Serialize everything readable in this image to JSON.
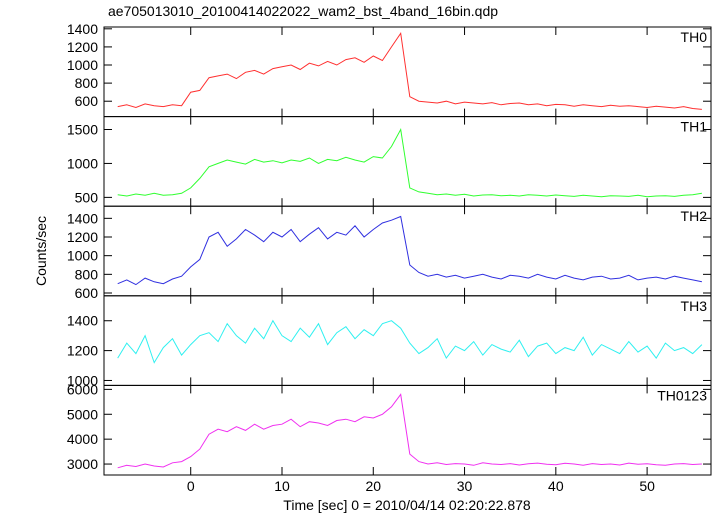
{
  "chart_data": {
    "type": "line",
    "title": "ae705013010_20100414022022_wam2_bst_4band_16bin.qdp",
    "x_label": "Time [sec] 0 = 2010/04/14 02:20:22.878",
    "y_label": "Counts/sec",
    "xlim": [
      -9.5,
      57
    ],
    "xticks": [
      0,
      10,
      20,
      30,
      40,
      50
    ],
    "x": [
      -8,
      -7,
      -6,
      -5,
      -4,
      -3,
      -2,
      -1,
      0,
      1,
      2,
      3,
      4,
      5,
      6,
      7,
      8,
      9,
      10,
      11,
      12,
      13,
      14,
      15,
      16,
      17,
      18,
      19,
      20,
      21,
      22,
      23,
      24,
      25,
      26,
      27,
      28,
      29,
      30,
      31,
      32,
      33,
      34,
      35,
      36,
      37,
      38,
      39,
      40,
      41,
      42,
      43,
      44,
      45,
      46,
      47,
      48,
      49,
      50,
      51,
      52,
      53,
      54,
      55,
      56
    ],
    "series": [
      {
        "name": "TH0",
        "color": "#ff3030",
        "ylim": [
          430,
          1420
        ],
        "yticks": [
          600,
          800,
          1000,
          1200,
          1400
        ],
        "values": [
          540,
          560,
          530,
          570,
          550,
          540,
          560,
          550,
          700,
          720,
          860,
          880,
          900,
          850,
          920,
          940,
          900,
          960,
          980,
          1000,
          950,
          1020,
          990,
          1040,
          1000,
          1060,
          1080,
          1030,
          1100,
          1050,
          1200,
          1350,
          650,
          600,
          590,
          580,
          600,
          570,
          590,
          580,
          570,
          585,
          560,
          575,
          580,
          560,
          570,
          550,
          565,
          560,
          545,
          560,
          550,
          540,
          555,
          545,
          550,
          540,
          530,
          545,
          535,
          525,
          540,
          520,
          510
        ]
      },
      {
        "name": "TH1",
        "color": "#30ff30",
        "ylim": [
          370,
          1690
        ],
        "yticks": [
          500,
          1000,
          1500
        ],
        "values": [
          540,
          520,
          550,
          530,
          560,
          530,
          540,
          560,
          640,
          780,
          950,
          1000,
          1050,
          1020,
          990,
          1060,
          1020,
          1040,
          1010,
          1050,
          1030,
          1080,
          1000,
          1060,
          1040,
          1090,
          1050,
          1020,
          1100,
          1080,
          1250,
          1500,
          640,
          580,
          560,
          540,
          550,
          530,
          545,
          520,
          535,
          540,
          525,
          530,
          520,
          540,
          530,
          520,
          535,
          525,
          515,
          530,
          520,
          510,
          525,
          520,
          515,
          530,
          510,
          520,
          525,
          515,
          530,
          540,
          560
        ]
      },
      {
        "name": "TH2",
        "color": "#3030e0",
        "ylim": [
          570,
          1530
        ],
        "yticks": [
          600,
          800,
          1000,
          1200,
          1400
        ],
        "values": [
          700,
          740,
          690,
          760,
          720,
          700,
          750,
          780,
          880,
          960,
          1200,
          1250,
          1100,
          1180,
          1280,
          1220,
          1150,
          1250,
          1200,
          1280,
          1150,
          1230,
          1300,
          1180,
          1250,
          1220,
          1320,
          1200,
          1280,
          1350,
          1380,
          1420,
          900,
          820,
          780,
          800,
          770,
          790,
          760,
          780,
          800,
          770,
          750,
          790,
          780,
          760,
          800,
          770,
          750,
          790,
          760,
          740,
          770,
          780,
          750,
          760,
          790,
          740,
          760,
          770,
          750,
          780,
          760,
          740,
          720
        ]
      },
      {
        "name": "TH3",
        "color": "#30f0f0",
        "ylim": [
          967,
          1567
        ],
        "yticks": [
          1000,
          1200,
          1400
        ],
        "values": [
          1150,
          1250,
          1180,
          1300,
          1120,
          1220,
          1280,
          1170,
          1240,
          1300,
          1320,
          1260,
          1380,
          1300,
          1250,
          1350,
          1280,
          1400,
          1300,
          1260,
          1350,
          1290,
          1380,
          1240,
          1320,
          1360,
          1280,
          1340,
          1300,
          1380,
          1400,
          1350,
          1250,
          1180,
          1220,
          1280,
          1150,
          1230,
          1200,
          1260,
          1170,
          1240,
          1210,
          1190,
          1270,
          1160,
          1230,
          1250,
          1180,
          1220,
          1200,
          1290,
          1170,
          1240,
          1210,
          1180,
          1260,
          1190,
          1230,
          1150,
          1250,
          1200,
          1220,
          1180,
          1240
        ]
      },
      {
        "name": "TH0123",
        "color": "#f030f0",
        "ylim": [
          2560,
          6160
        ],
        "yticks": [
          3000,
          4000,
          5000,
          6000
        ],
        "values": [
          2850,
          2950,
          2900,
          3000,
          2920,
          2880,
          3050,
          3100,
          3300,
          3600,
          4200,
          4400,
          4300,
          4500,
          4350,
          4600,
          4400,
          4550,
          4600,
          4800,
          4500,
          4700,
          4650,
          4550,
          4750,
          4800,
          4700,
          4900,
          4850,
          5000,
          5300,
          5800,
          3400,
          3100,
          3000,
          3050,
          2980,
          3020,
          3000,
          2950,
          3050,
          3000,
          2980,
          3020,
          2960,
          3010,
          3040,
          2990,
          2970,
          3030,
          3000,
          2950,
          3020,
          2980,
          3000,
          2960,
          3040,
          2990,
          3010,
          2970,
          2950,
          3000,
          3020,
          2980,
          3000
        ]
      }
    ]
  }
}
